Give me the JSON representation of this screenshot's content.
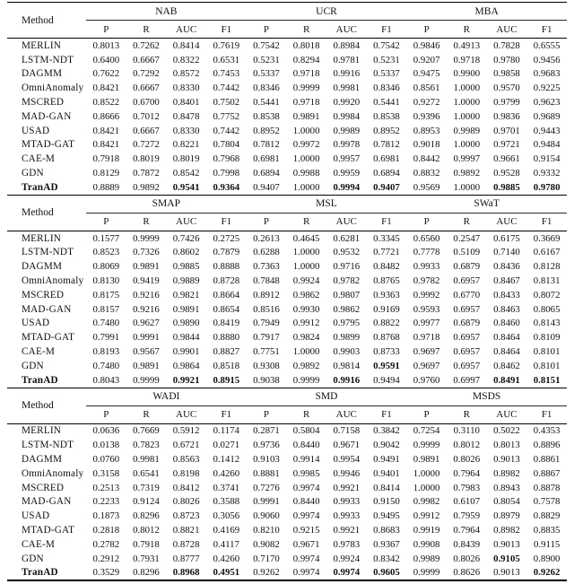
{
  "table": {
    "method_header": "Method",
    "metrics": [
      "P",
      "R",
      "AUC",
      "F1"
    ],
    "blocks": [
      {
        "datasets": [
          "NAB",
          "UCR",
          "MBA"
        ],
        "rows": [
          {
            "method": "MERLIN",
            "bold_method": false,
            "bold_cells": [],
            "values": [
              "0.8013",
              "0.7262",
              "0.8414",
              "0.7619",
              "0.7542",
              "0.8018",
              "0.8984",
              "0.7542",
              "0.9846",
              "0.4913",
              "0.7828",
              "0.6555"
            ]
          },
          {
            "method": "LSTM-NDT",
            "bold_method": false,
            "bold_cells": [],
            "values": [
              "0.6400",
              "0.6667",
              "0.8322",
              "0.6531",
              "0.5231",
              "0.8294",
              "0.9781",
              "0.5231",
              "0.9207",
              "0.9718",
              "0.9780",
              "0.9456"
            ]
          },
          {
            "method": "DAGMM",
            "bold_method": false,
            "bold_cells": [],
            "values": [
              "0.7622",
              "0.7292",
              "0.8572",
              "0.7453",
              "0.5337",
              "0.9718",
              "0.9916",
              "0.5337",
              "0.9475",
              "0.9900",
              "0.9858",
              "0.9683"
            ]
          },
          {
            "method": "OmniAnomaly",
            "bold_method": false,
            "bold_cells": [],
            "values": [
              "0.8421",
              "0.6667",
              "0.8330",
              "0.7442",
              "0.8346",
              "0.9999",
              "0.9981",
              "0.8346",
              "0.8561",
              "1.0000",
              "0.9570",
              "0.9225"
            ]
          },
          {
            "method": "MSCRED",
            "bold_method": false,
            "bold_cells": [],
            "values": [
              "0.8522",
              "0.6700",
              "0.8401",
              "0.7502",
              "0.5441",
              "0.9718",
              "0.9920",
              "0.5441",
              "0.9272",
              "1.0000",
              "0.9799",
              "0.9623"
            ]
          },
          {
            "method": "MAD-GAN",
            "bold_method": false,
            "bold_cells": [],
            "values": [
              "0.8666",
              "0.7012",
              "0.8478",
              "0.7752",
              "0.8538",
              "0.9891",
              "0.9984",
              "0.8538",
              "0.9396",
              "1.0000",
              "0.9836",
              "0.9689"
            ]
          },
          {
            "method": "USAD",
            "bold_method": false,
            "bold_cells": [],
            "values": [
              "0.8421",
              "0.6667",
              "0.8330",
              "0.7442",
              "0.8952",
              "1.0000",
              "0.9989",
              "0.8952",
              "0.8953",
              "0.9989",
              "0.9701",
              "0.9443"
            ]
          },
          {
            "method": "MTAD-GAT",
            "bold_method": false,
            "bold_cells": [],
            "values": [
              "0.8421",
              "0.7272",
              "0.8221",
              "0.7804",
              "0.7812",
              "0.9972",
              "0.9978",
              "0.7812",
              "0.9018",
              "1.0000",
              "0.9721",
              "0.9484"
            ]
          },
          {
            "method": "CAE-M",
            "bold_method": false,
            "bold_cells": [],
            "values": [
              "0.7918",
              "0.8019",
              "0.8019",
              "0.7968",
              "0.6981",
              "1.0000",
              "0.9957",
              "0.6981",
              "0.8442",
              "0.9997",
              "0.9661",
              "0.9154"
            ]
          },
          {
            "method": "GDN",
            "bold_method": false,
            "bold_cells": [],
            "values": [
              "0.8129",
              "0.7872",
              "0.8542",
              "0.7998",
              "0.6894",
              "0.9988",
              "0.9959",
              "0.6894",
              "0.8832",
              "0.9892",
              "0.9528",
              "0.9332"
            ]
          },
          {
            "method": "TranAD",
            "bold_method": true,
            "bold_cells": [
              2,
              3,
              6,
              7,
              10,
              11
            ],
            "values": [
              "0.8889",
              "0.9892",
              "0.9541",
              "0.9364",
              "0.9407",
              "1.0000",
              "0.9994",
              "0.9407",
              "0.9569",
              "1.0000",
              "0.9885",
              "0.9780"
            ]
          }
        ]
      },
      {
        "datasets": [
          "SMAP",
          "MSL",
          "SWaT"
        ],
        "rows": [
          {
            "method": "MERLIN",
            "bold_method": false,
            "bold_cells": [],
            "values": [
              "0.1577",
              "0.9999",
              "0.7426",
              "0.2725",
              "0.2613",
              "0.4645",
              "0.6281",
              "0.3345",
              "0.6560",
              "0.2547",
              "0.6175",
              "0.3669"
            ]
          },
          {
            "method": "LSTM-NDT",
            "bold_method": false,
            "bold_cells": [],
            "values": [
              "0.8523",
              "0.7326",
              "0.8602",
              "0.7879",
              "0.6288",
              "1.0000",
              "0.9532",
              "0.7721",
              "0.7778",
              "0.5109",
              "0.7140",
              "0.6167"
            ]
          },
          {
            "method": "DAGMM",
            "bold_method": false,
            "bold_cells": [],
            "values": [
              "0.8069",
              "0.9891",
              "0.9885",
              "0.8888",
              "0.7363",
              "1.0000",
              "0.9716",
              "0.8482",
              "0.9933",
              "0.6879",
              "0.8436",
              "0.8128"
            ]
          },
          {
            "method": "OmniAnomaly",
            "bold_method": false,
            "bold_cells": [],
            "values": [
              "0.8130",
              "0.9419",
              "0.9889",
              "0.8728",
              "0.7848",
              "0.9924",
              "0.9782",
              "0.8765",
              "0.9782",
              "0.6957",
              "0.8467",
              "0.8131"
            ]
          },
          {
            "method": "MSCRED",
            "bold_method": false,
            "bold_cells": [],
            "values": [
              "0.8175",
              "0.9216",
              "0.9821",
              "0.8664",
              "0.8912",
              "0.9862",
              "0.9807",
              "0.9363",
              "0.9992",
              "0.6770",
              "0.8433",
              "0.8072"
            ]
          },
          {
            "method": "MAD-GAN",
            "bold_method": false,
            "bold_cells": [],
            "values": [
              "0.8157",
              "0.9216",
              "0.9891",
              "0.8654",
              "0.8516",
              "0.9930",
              "0.9862",
              "0.9169",
              "0.9593",
              "0.6957",
              "0.8463",
              "0.8065"
            ]
          },
          {
            "method": "USAD",
            "bold_method": false,
            "bold_cells": [],
            "values": [
              "0.7480",
              "0.9627",
              "0.9890",
              "0.8419",
              "0.7949",
              "0.9912",
              "0.9795",
              "0.8822",
              "0.9977",
              "0.6879",
              "0.8460",
              "0.8143"
            ]
          },
          {
            "method": "MTAD-GAT",
            "bold_method": false,
            "bold_cells": [],
            "values": [
              "0.7991",
              "0.9991",
              "0.9844",
              "0.8880",
              "0.7917",
              "0.9824",
              "0.9899",
              "0.8768",
              "0.9718",
              "0.6957",
              "0.8464",
              "0.8109"
            ]
          },
          {
            "method": "CAE-M",
            "bold_method": false,
            "bold_cells": [],
            "values": [
              "0.8193",
              "0.9567",
              "0.9901",
              "0.8827",
              "0.7751",
              "1.0000",
              "0.9903",
              "0.8733",
              "0.9697",
              "0.6957",
              "0.8464",
              "0.8101"
            ]
          },
          {
            "method": "GDN",
            "bold_method": false,
            "bold_cells": [
              7
            ],
            "values": [
              "0.7480",
              "0.9891",
              "0.9864",
              "0.8518",
              "0.9308",
              "0.9892",
              "0.9814",
              "0.9591",
              "0.9697",
              "0.6957",
              "0.8462",
              "0.8101"
            ]
          },
          {
            "method": "TranAD",
            "bold_method": true,
            "bold_cells": [
              2,
              3,
              6,
              10,
              11
            ],
            "values": [
              "0.8043",
              "0.9999",
              "0.9921",
              "0.8915",
              "0.9038",
              "0.9999",
              "0.9916",
              "0.9494",
              "0.9760",
              "0.6997",
              "0.8491",
              "0.8151"
            ]
          }
        ]
      },
      {
        "datasets": [
          "WADI",
          "SMD",
          "MSDS"
        ],
        "rows": [
          {
            "method": "MERLIN",
            "bold_method": false,
            "bold_cells": [],
            "values": [
              "0.0636",
              "0.7669",
              "0.5912",
              "0.1174",
              "0.2871",
              "0.5804",
              "0.7158",
              "0.3842",
              "0.7254",
              "0.3110",
              "0.5022",
              "0.4353"
            ]
          },
          {
            "method": "LSTM-NDT",
            "bold_method": false,
            "bold_cells": [],
            "values": [
              "0.0138",
              "0.7823",
              "0.6721",
              "0.0271",
              "0.9736",
              "0.8440",
              "0.9671",
              "0.9042",
              "0.9999",
              "0.8012",
              "0.8013",
              "0.8896"
            ]
          },
          {
            "method": "DAGMM",
            "bold_method": false,
            "bold_cells": [],
            "values": [
              "0.0760",
              "0.9981",
              "0.8563",
              "0.1412",
              "0.9103",
              "0.9914",
              "0.9954",
              "0.9491",
              "0.9891",
              "0.8026",
              "0.9013",
              "0.8861"
            ]
          },
          {
            "method": "OmniAnomaly",
            "bold_method": false,
            "bold_cells": [],
            "values": [
              "0.3158",
              "0.6541",
              "0.8198",
              "0.4260",
              "0.8881",
              "0.9985",
              "0.9946",
              "0.9401",
              "1.0000",
              "0.7964",
              "0.8982",
              "0.8867"
            ]
          },
          {
            "method": "MSCRED",
            "bold_method": false,
            "bold_cells": [],
            "values": [
              "0.2513",
              "0.7319",
              "0.8412",
              "0.3741",
              "0.7276",
              "0.9974",
              "0.9921",
              "0.8414",
              "1.0000",
              "0.7983",
              "0.8943",
              "0.8878"
            ]
          },
          {
            "method": "MAD-GAN",
            "bold_method": false,
            "bold_cells": [],
            "values": [
              "0.2233",
              "0.9124",
              "0.8026",
              "0.3588",
              "0.9991",
              "0.8440",
              "0.9933",
              "0.9150",
              "0.9982",
              "0.6107",
              "0.8054",
              "0.7578"
            ]
          },
          {
            "method": "USAD",
            "bold_method": false,
            "bold_cells": [],
            "values": [
              "0.1873",
              "0.8296",
              "0.8723",
              "0.3056",
              "0.9060",
              "0.9974",
              "0.9933",
              "0.9495",
              "0.9912",
              "0.7959",
              "0.8979",
              "0.8829"
            ]
          },
          {
            "method": "MTAD-GAT",
            "bold_method": false,
            "bold_cells": [],
            "values": [
              "0.2818",
              "0.8012",
              "0.8821",
              "0.4169",
              "0.8210",
              "0.9215",
              "0.9921",
              "0.8683",
              "0.9919",
              "0.7964",
              "0.8982",
              "0.8835"
            ]
          },
          {
            "method": "CAE-M",
            "bold_method": false,
            "bold_cells": [],
            "values": [
              "0.2782",
              "0.7918",
              "0.8728",
              "0.4117",
              "0.9082",
              "0.9671",
              "0.9783",
              "0.9367",
              "0.9908",
              "0.8439",
              "0.9013",
              "0.9115"
            ]
          },
          {
            "method": "GDN",
            "bold_method": false,
            "bold_cells": [
              10
            ],
            "values": [
              "0.2912",
              "0.7931",
              "0.8777",
              "0.4260",
              "0.7170",
              "0.9974",
              "0.9924",
              "0.8342",
              "0.9989",
              "0.8026",
              "0.9105",
              "0.8900"
            ]
          },
          {
            "method": "TranAD",
            "bold_method": true,
            "bold_cells": [
              2,
              3,
              6,
              7,
              11
            ],
            "values": [
              "0.3529",
              "0.8296",
              "0.8968",
              "0.4951",
              "0.9262",
              "0.9974",
              "0.9974",
              "0.9605",
              "0.9999",
              "0.8626",
              "0.9013",
              "0.9262"
            ]
          }
        ]
      }
    ]
  }
}
